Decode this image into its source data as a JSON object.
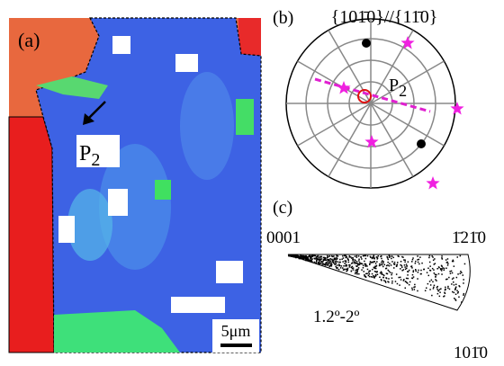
{
  "panels": {
    "a": {
      "label": "(a)",
      "marker": {
        "letter": "P",
        "subscript": "2"
      },
      "scale_bar": "5μm"
    },
    "b": {
      "label": "(b)",
      "title": "{101̄0}//{11̄0}",
      "marker": {
        "letter": "P",
        "subscript": "2"
      }
    },
    "c": {
      "label": "(c)",
      "corners": [
        "0001",
        "1̄21̄0",
        "101̄0"
      ],
      "range": "1.2º-2º"
    }
  }
}
